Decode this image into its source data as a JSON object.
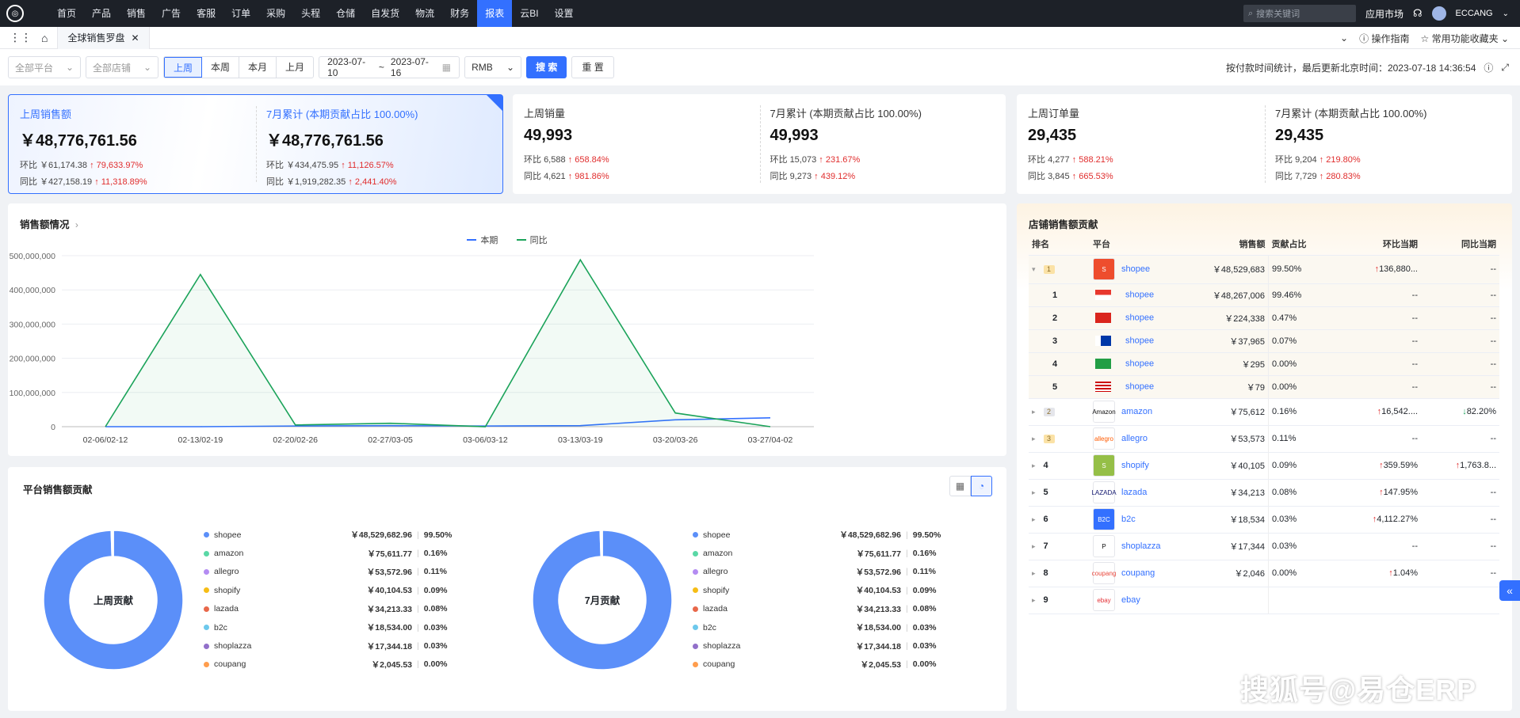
{
  "nav": {
    "items": [
      "首页",
      "产品",
      "销售",
      "广告",
      "客服",
      "订单",
      "采购",
      "头程",
      "仓储",
      "自发货",
      "物流",
      "财务",
      "报表",
      "云BI",
      "设置"
    ],
    "active_index": 12,
    "search_placeholder": "搜索关键词",
    "app_market": "应用市场",
    "username": "ECCANG"
  },
  "tabs": {
    "current": "全球销售罗盘",
    "guide": "操作指南",
    "favorites": "常用功能收藏夹"
  },
  "filters": {
    "platform": "全部平台",
    "store": "全部店铺",
    "period_buttons": [
      "上周",
      "本周",
      "本月",
      "上月"
    ],
    "period_active": 0,
    "date_start": "2023-07-10",
    "date_sep": "~",
    "date_end": "2023-07-16",
    "currency": "RMB",
    "search_btn": "搜 索",
    "reset_btn": "重 置",
    "stat_note": "按付款时间统计，最后更新北京时间：2023-07-18 14:36:54"
  },
  "kpis": [
    {
      "left": {
        "title": "上周销售额",
        "value": "￥48,776,761.56",
        "hb_label": "环比",
        "hb_val": "￥61,174.38",
        "hb_pct": "79,633.97%",
        "tb_label": "同比",
        "tb_val": "￥427,158.19",
        "tb_pct": "11,318.89%"
      },
      "right": {
        "title": "7月累计 (本期贡献占比 100.00%)",
        "value": "￥48,776,761.56",
        "hb_label": "环比",
        "hb_val": "￥434,475.95",
        "hb_pct": "11,126.57%",
        "tb_label": "同比",
        "tb_val": "￥1,919,282.35",
        "tb_pct": "2,441.40%"
      }
    },
    {
      "left": {
        "title": "上周销量",
        "value": "49,993",
        "hb_label": "环比",
        "hb_val": "6,588",
        "hb_pct": "658.84%",
        "tb_label": "同比",
        "tb_val": "4,621",
        "tb_pct": "981.86%"
      },
      "right": {
        "title": "7月累计 (本期贡献占比 100.00%)",
        "value": "49,993",
        "hb_label": "环比",
        "hb_val": "15,073",
        "hb_pct": "231.67%",
        "tb_label": "同比",
        "tb_val": "9,273",
        "tb_pct": "439.12%"
      }
    },
    {
      "left": {
        "title": "上周订单量",
        "value": "29,435",
        "hb_label": "环比",
        "hb_val": "4,277",
        "hb_pct": "588.21%",
        "tb_label": "同比",
        "tb_val": "3,845",
        "tb_pct": "665.53%"
      },
      "right": {
        "title": "7月累计 (本期贡献占比 100.00%)",
        "value": "29,435",
        "hb_label": "环比",
        "hb_val": "9,204",
        "hb_pct": "219.80%",
        "tb_label": "同比",
        "tb_val": "7,729",
        "tb_pct": "280.83%"
      }
    }
  ],
  "sales_chart": {
    "title": "销售额情况",
    "legend": [
      "本期",
      "同比"
    ],
    "colors": {
      "current": "#3370ff",
      "yoy": "#1ba35a"
    }
  },
  "chart_data": {
    "type": "line",
    "categories": [
      "02-06/02-12",
      "02-13/02-19",
      "02-20/02-26",
      "02-27/03-05",
      "03-06/03-12",
      "03-13/03-19",
      "03-20/03-26",
      "03-27/04-02"
    ],
    "series": [
      {
        "name": "本期",
        "values": [
          0,
          0,
          2000000,
          3000000,
          2000000,
          3000000,
          20000000,
          26000000
        ]
      },
      {
        "name": "同比",
        "values": [
          0,
          445000000,
          5000000,
          10000000,
          0,
          488000000,
          40000000,
          0
        ]
      }
    ],
    "yticks": [
      "500,000,000",
      "400,000,000",
      "300,000,000",
      "200,000,000",
      "100,000,000",
      "0"
    ],
    "ylim": [
      0,
      500000000
    ],
    "grid": true,
    "legend_position": "top-center"
  },
  "platform_section": {
    "title": "平台销售额贡献",
    "donuts": [
      {
        "center": "上周贡献",
        "share": [
          99.5,
          0.16,
          0.11,
          0.09,
          0.08,
          0.03,
          0.03,
          0.0
        ]
      },
      {
        "center": "7月贡献",
        "share": [
          99.5,
          0.16,
          0.11,
          0.09,
          0.08,
          0.03,
          0.03,
          0.0
        ]
      }
    ],
    "legend": [
      {
        "name": "shopee",
        "value": "￥48,529,682.96",
        "pct": "99.50%",
        "color": "#5b8ff9"
      },
      {
        "name": "amazon",
        "value": "￥75,611.77",
        "pct": "0.16%",
        "color": "#5ad8a6"
      },
      {
        "name": "allegro",
        "value": "￥53,572.96",
        "pct": "0.11%",
        "color": "#b48cf2"
      },
      {
        "name": "shopify",
        "value": "￥40,104.53",
        "pct": "0.09%",
        "color": "#f6bd16"
      },
      {
        "name": "lazada",
        "value": "￥34,213.33",
        "pct": "0.08%",
        "color": "#e8684a"
      },
      {
        "name": "b2c",
        "value": "￥18,534.00",
        "pct": "0.03%",
        "color": "#6dc8ec"
      },
      {
        "name": "shoplazza",
        "value": "￥17,344.18",
        "pct": "0.03%",
        "color": "#9270ca"
      },
      {
        "name": "coupang",
        "value": "￥2,045.53",
        "pct": "0.00%",
        "color": "#ff9d4d"
      }
    ]
  },
  "shop_table": {
    "title": "店铺销售额贡献",
    "headers": [
      "排名",
      "平台",
      "销售额",
      "贡献占比",
      "环比当期",
      "同比当期"
    ],
    "rows": [
      {
        "rank": "1",
        "badge": true,
        "expand": "▾",
        "logo": "S",
        "name": "shopee",
        "sales": "￥48,529,683",
        "pct": "99.50%",
        "hb": "136,880...",
        "hb_dir": "up",
        "tb": "--",
        "tb_dir": ""
      },
      {
        "rank": "1",
        "sub": true,
        "flag": "tw",
        "name": "shopee",
        "sales": "￥48,267,006",
        "pct": "99.46%",
        "hb": "--",
        "hb_dir": "",
        "tb": "--",
        "tb_dir": ""
      },
      {
        "rank": "2",
        "sub": true,
        "flag": "vn",
        "name": "shopee",
        "sales": "￥224,338",
        "pct": "0.47%",
        "hb": "--",
        "hb_dir": "",
        "tb": "--",
        "tb_dir": ""
      },
      {
        "rank": "3",
        "sub": true,
        "flag": "ph",
        "name": "shopee",
        "sales": "￥37,965",
        "pct": "0.07%",
        "hb": "--",
        "hb_dir": "",
        "tb": "--",
        "tb_dir": ""
      },
      {
        "rank": "4",
        "sub": true,
        "flag": "br",
        "name": "shopee",
        "sales": "￥295",
        "pct": "0.00%",
        "hb": "--",
        "hb_dir": "",
        "tb": "--",
        "tb_dir": ""
      },
      {
        "rank": "5",
        "sub": true,
        "flag": "my",
        "name": "shopee",
        "sales": "￥79",
        "pct": "0.00%",
        "hb": "--",
        "hb_dir": "",
        "tb": "--",
        "tb_dir": ""
      },
      {
        "rank": "2",
        "badge": true,
        "expand": "▸",
        "logo": "Amazon",
        "name": "amazon",
        "sales": "￥75,612",
        "pct": "0.16%",
        "hb": "16,542....",
        "hb_dir": "up",
        "tb": "82.20%",
        "tb_dir": "down"
      },
      {
        "rank": "3",
        "badge": true,
        "expand": "▸",
        "logo": "allegro",
        "name": "allegro",
        "sales": "￥53,573",
        "pct": "0.11%",
        "hb": "--",
        "hb_dir": "",
        "tb": "--",
        "tb_dir": ""
      },
      {
        "rank": "4",
        "expand": "▸",
        "logo": "S",
        "name": "shopify",
        "sales": "￥40,105",
        "pct": "0.09%",
        "hb": "359.59%",
        "hb_dir": "up",
        "tb": "1,763.8...",
        "tb_dir": "up"
      },
      {
        "rank": "5",
        "expand": "▸",
        "logo": "LAZADA",
        "name": "lazada",
        "sales": "￥34,213",
        "pct": "0.08%",
        "hb": "147.95%",
        "hb_dir": "up",
        "tb": "--",
        "tb_dir": ""
      },
      {
        "rank": "6",
        "expand": "▸",
        "logo": "B2C",
        "name": "b2c",
        "sales": "￥18,534",
        "pct": "0.03%",
        "hb": "4,112.27%",
        "hb_dir": "up",
        "tb": "--",
        "tb_dir": ""
      },
      {
        "rank": "7",
        "expand": "▸",
        "logo": "P",
        "name": "shoplazza",
        "sales": "￥17,344",
        "pct": "0.03%",
        "hb": "--",
        "hb_dir": "",
        "tb": "--",
        "tb_dir": ""
      },
      {
        "rank": "8",
        "expand": "▸",
        "logo": "coupang",
        "name": "coupang",
        "sales": "￥2,046",
        "pct": "0.00%",
        "hb": "1.04%",
        "hb_dir": "up",
        "tb": "--",
        "tb_dir": ""
      },
      {
        "rank": "9",
        "expand": "▸",
        "logo": "ebay",
        "name": "ebay",
        "sales": "",
        "pct": "",
        "hb": "",
        "hb_dir": "",
        "tb": "",
        "tb_dir": ""
      }
    ]
  },
  "watermark": "搜狐号@易仓ERP"
}
